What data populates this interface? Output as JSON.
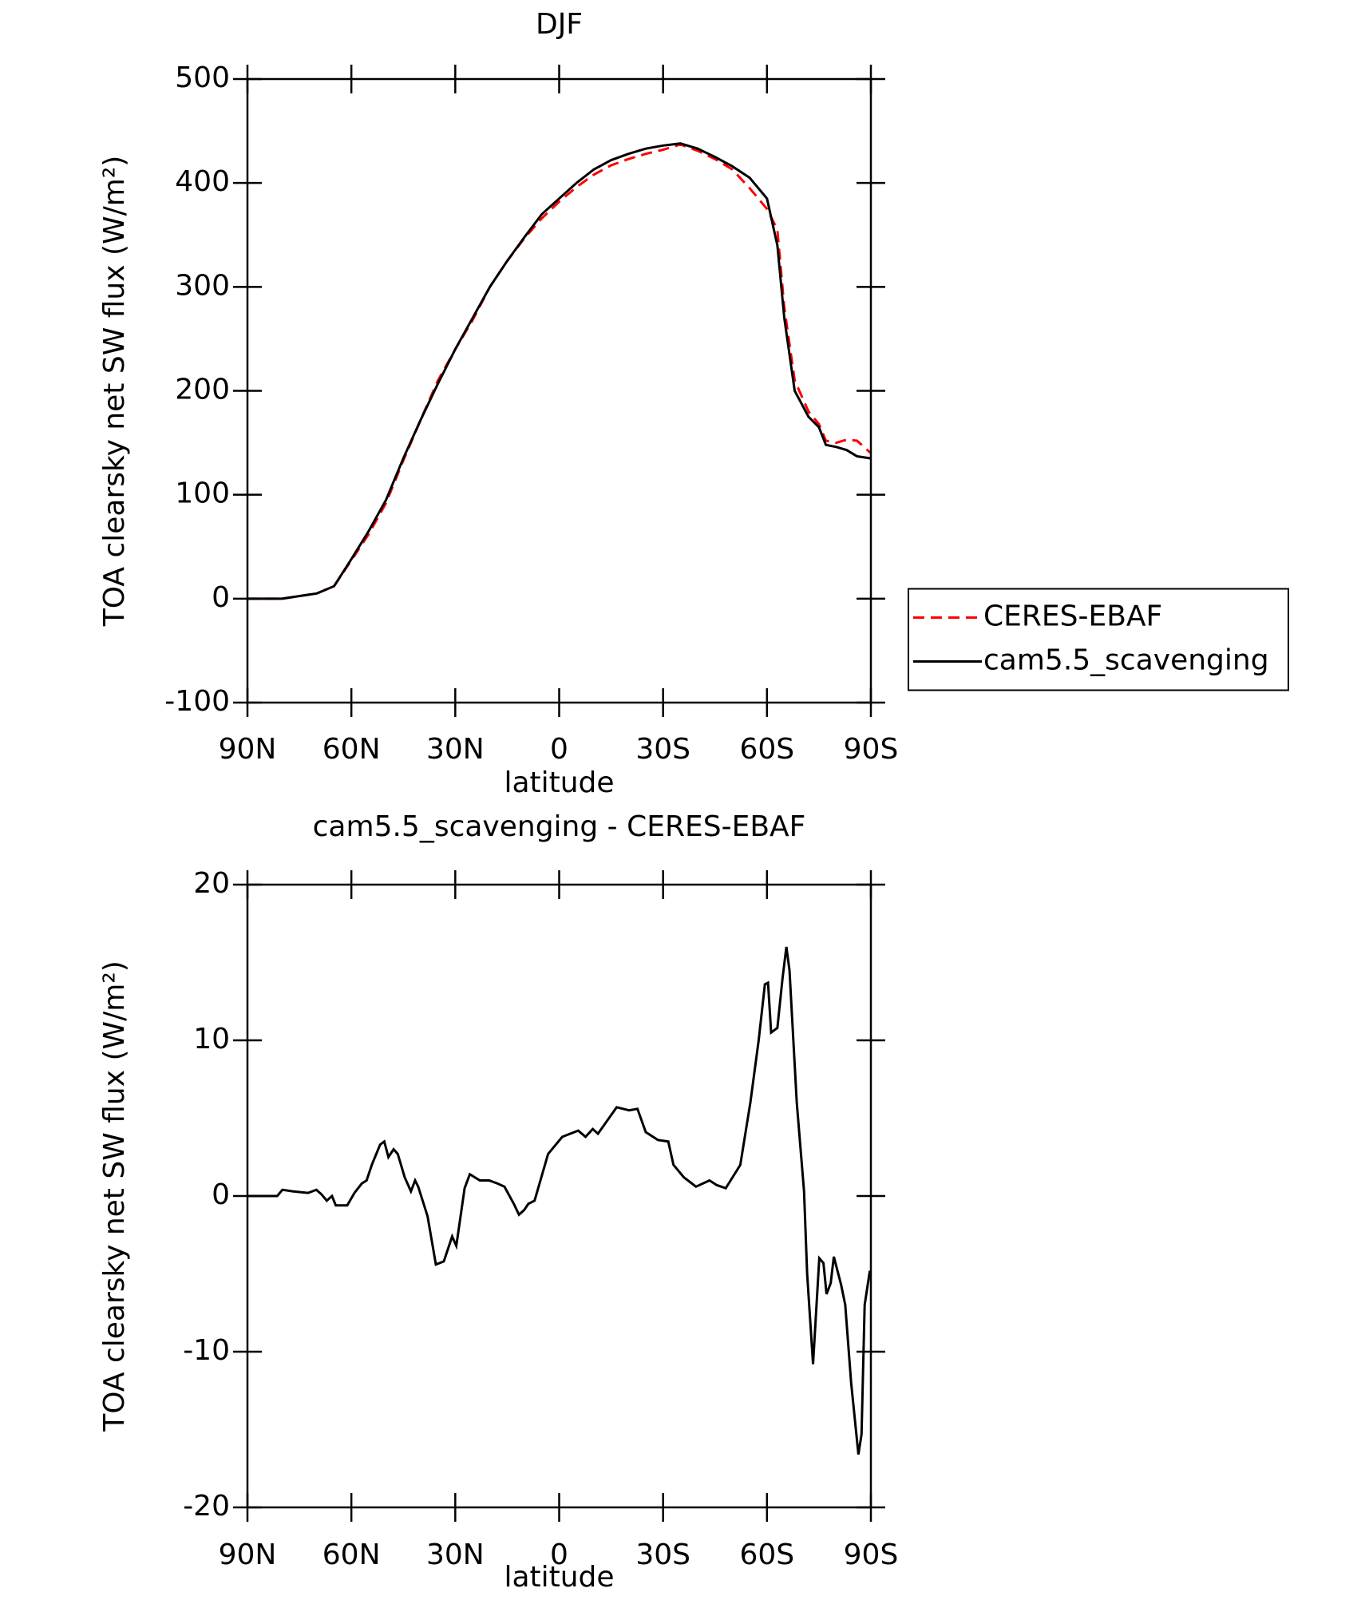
{
  "chart_data": [
    {
      "type": "line",
      "title": "DJF",
      "x_label": "latitude",
      "y_label": "TOA clearsky net SW flux (W/m²)",
      "xlim": [
        90,
        -90
      ],
      "ylim": [
        -100,
        500
      ],
      "xticks": [
        {
          "value": 90,
          "label": "90N"
        },
        {
          "value": 60,
          "label": "60N"
        },
        {
          "value": 30,
          "label": "30N"
        },
        0,
        {
          "value": -30,
          "label": "30S"
        },
        {
          "value": -60,
          "label": "60S"
        },
        {
          "value": -90,
          "label": "90S"
        }
      ],
      "yticks": [
        -100,
        0,
        100,
        200,
        300,
        400,
        500
      ],
      "legend": "right",
      "x": [
        90,
        80,
        70,
        65,
        60,
        55,
        50,
        45,
        40,
        35,
        30,
        25,
        20,
        15,
        10,
        5,
        0,
        -5,
        -10,
        -15,
        -20,
        -25,
        -30,
        -35,
        -40,
        -45,
        -50,
        -55,
        -60,
        -63,
        -65,
        -68,
        -72,
        -75,
        -77,
        -80,
        -83,
        -86,
        -90
      ],
      "series": [
        {
          "name": "CERES-EBAF",
          "color": "#ff0000",
          "line_style": "dashed",
          "values": [
            0,
            0,
            5,
            12,
            37,
            62,
            92,
            133,
            172,
            210,
            240,
            268,
            300,
            325,
            347,
            366,
            382,
            396,
            408,
            417,
            423,
            428,
            432,
            437,
            431,
            423,
            413,
            395,
            375,
            355,
            280,
            210,
            180,
            168,
            152,
            150,
            153,
            152,
            140
          ]
        },
        {
          "name": "cam5.5_scavenging",
          "color": "#000000",
          "line_style": "solid",
          "values": [
            0,
            0,
            5,
            12,
            38,
            65,
            95,
            135,
            172,
            207,
            240,
            270,
            300,
            325,
            348,
            370,
            385,
            400,
            413,
            422,
            428,
            433,
            436,
            438,
            433,
            425,
            416,
            405,
            385,
            340,
            270,
            200,
            175,
            165,
            148,
            146,
            143,
            137,
            135
          ]
        }
      ]
    },
    {
      "type": "line",
      "title": "cam5.5_scavenging - CERES-EBAF",
      "x_label": "latitude",
      "y_label": "TOA clearsky net SW flux (W/m²)",
      "xlim": [
        90,
        -90
      ],
      "ylim": [
        -20,
        20
      ],
      "xticks": [
        {
          "value": 90,
          "label": "90N"
        },
        {
          "value": 60,
          "label": "60N"
        },
        {
          "value": 30,
          "label": "30N"
        },
        0,
        {
          "value": -30,
          "label": "30S"
        },
        {
          "value": -60,
          "label": "60S"
        },
        {
          "value": -90,
          "label": "90S"
        }
      ],
      "yticks": [
        -20,
        -10,
        0,
        10,
        20
      ],
      "x": [
        90,
        81.4,
        79.9,
        77,
        72.5,
        70.1,
        68.6,
        67.1,
        65.6,
        64.5,
        61.2,
        59.1,
        57,
        55.6,
        54.1,
        51.7,
        50.5,
        49.3,
        47.8,
        46.6,
        44.6,
        42.8,
        41.6,
        40.7,
        38,
        35.6,
        33.3,
        30.9,
        29.7,
        27.3,
        25.8,
        22.9,
        20.2,
        17.8,
        15.8,
        13.1,
        11.6,
        10.1,
        8.9,
        7.1,
        3.2,
        -0.9,
        -5.5,
        -7.6,
        -9.7,
        -11.2,
        -16.6,
        -20.2,
        -22.6,
        -25,
        -28.5,
        -31.5,
        -33,
        -36,
        -39.5,
        -43.4,
        -45.5,
        -48.1,
        -52.3,
        -55.2,
        -57.6,
        -59.4,
        -60.3,
        -61.2,
        -63,
        -64.5,
        -65.6,
        -66.5,
        -68.6,
        -70.7,
        -71.6,
        -73.3,
        -75.1,
        -76.3,
        -77.2,
        -78.4,
        -79.3,
        -81.4,
        -82.6,
        -84.3,
        -86.4,
        -87.3,
        -88.2,
        -89.7
      ],
      "series": [
        {
          "name": "cam5.5_scavenging - CERES-EBAF",
          "color": "#000000",
          "values": [
            0,
            0,
            0.4,
            0.3,
            0.2,
            0.4,
            0.1,
            -0.3,
            0,
            -0.6,
            -0.6,
            0.2,
            0.8,
            1,
            2,
            3.3,
            3.5,
            2.5,
            3,
            2.7,
            1.2,
            0.3,
            1,
            0.6,
            -1.3,
            -4.4,
            -4.2,
            -2.6,
            -3.2,
            0.5,
            1.4,
            1,
            1,
            0.8,
            0.6,
            -0.5,
            -1.2,
            -0.9,
            -0.5,
            -0.3,
            2.7,
            3.8,
            4.2,
            3.8,
            4.3,
            4,
            5.7,
            5.5,
            5.6,
            4.1,
            3.6,
            3.5,
            2,
            1.2,
            0.6,
            1,
            0.7,
            0.5,
            2,
            6,
            10,
            13.6,
            13.7,
            10.5,
            10.8,
            14,
            16,
            14.5,
            6,
            0.3,
            -5,
            -10.8,
            -4,
            -4.3,
            -6.3,
            -5.6,
            -3.9,
            -5.7,
            -7,
            -12,
            -16.6,
            -15.3,
            -7,
            -4.8
          ]
        }
      ]
    }
  ]
}
